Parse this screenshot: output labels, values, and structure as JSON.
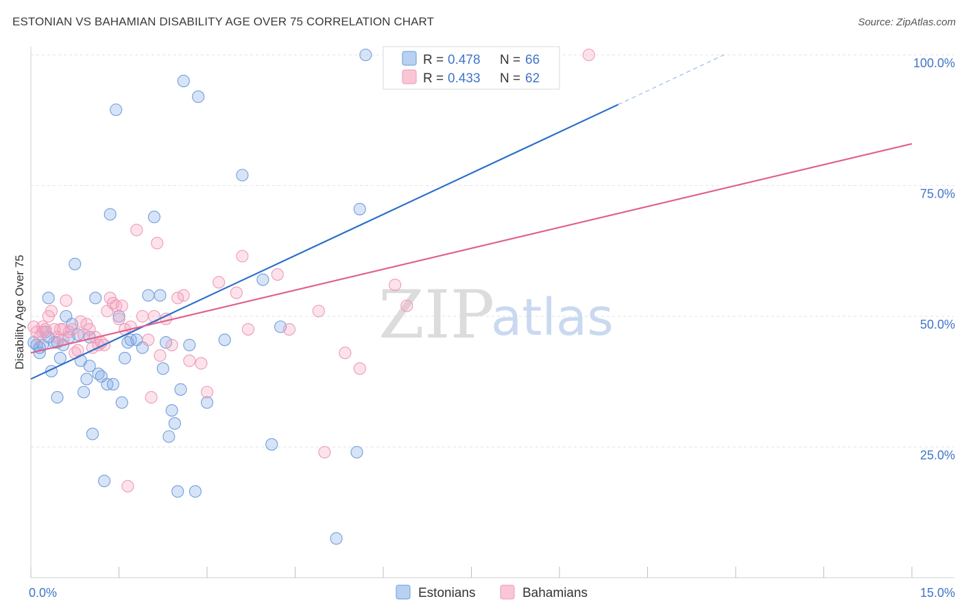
{
  "title": "ESTONIAN VS BAHAMIAN DISABILITY AGE OVER 75 CORRELATION CHART",
  "source": "Source: ZipAtlas.com",
  "watermark": {
    "zip": "ZIP",
    "atlas": "atlas"
  },
  "chart_data": {
    "type": "scatter",
    "xlabel": "",
    "ylabel": "Disability Age Over 75",
    "xlim": [
      0,
      15
    ],
    "ylim": [
      0,
      100
    ],
    "x_tick_labels": [
      "0.0%",
      "15.0%"
    ],
    "y_ticks": [
      25,
      50,
      75,
      100
    ],
    "y_tick_labels": [
      "25.0%",
      "50.0%",
      "75.0%",
      "100.0%"
    ],
    "grid": true,
    "legend_position": "top-center",
    "colors": {
      "estonians": "#7aa6e0",
      "bahamians": "#f2a3bd",
      "estonians_line": "#2a6fc9",
      "bahamians_line": "#e0608d"
    },
    "stats": [
      {
        "r_label": "R = ",
        "r": "0.478",
        "n_label": "N = ",
        "n": "66"
      },
      {
        "r_label": "R = ",
        "r": "0.433",
        "n_label": "N = ",
        "n": "62"
      }
    ],
    "series": [
      {
        "name": "Estonians",
        "trend": {
          "x0": 0,
          "y0": 38,
          "x1": 10,
          "y1": 90.5,
          "dash_x1": 11.8,
          "dash_y1": 100
        },
        "points": [
          [
            0.05,
            45
          ],
          [
            0.1,
            44.5
          ],
          [
            0.15,
            43
          ],
          [
            0.2,
            44.5
          ],
          [
            0.25,
            47
          ],
          [
            0.3,
            53.5
          ],
          [
            0.35,
            39.5
          ],
          [
            0.4,
            45
          ],
          [
            0.45,
            34.5
          ],
          [
            0.5,
            42
          ],
          [
            0.55,
            44.5
          ],
          [
            0.6,
            50
          ],
          [
            0.65,
            46
          ],
          [
            0.7,
            48.5
          ],
          [
            0.75,
            60
          ],
          [
            0.8,
            46.5
          ],
          [
            0.85,
            41.5
          ],
          [
            0.9,
            35.5
          ],
          [
            0.95,
            38
          ],
          [
            1.0,
            40.5
          ],
          [
            1.05,
            27.5
          ],
          [
            1.1,
            53.5
          ],
          [
            1.15,
            39
          ],
          [
            1.2,
            38.5
          ],
          [
            1.25,
            18.5
          ],
          [
            1.3,
            37
          ],
          [
            1.35,
            69.5
          ],
          [
            1.4,
            37
          ],
          [
            1.45,
            89.5
          ],
          [
            1.5,
            50
          ],
          [
            1.55,
            33.5
          ],
          [
            1.6,
            42
          ],
          [
            1.7,
            45.5
          ],
          [
            1.8,
            45.5
          ],
          [
            1.9,
            44
          ],
          [
            2.0,
            54
          ],
          [
            2.1,
            69
          ],
          [
            2.2,
            54
          ],
          [
            2.25,
            40
          ],
          [
            2.3,
            45
          ],
          [
            2.35,
            27
          ],
          [
            2.4,
            32
          ],
          [
            2.45,
            29.5
          ],
          [
            2.5,
            16.5
          ],
          [
            2.55,
            36
          ],
          [
            2.6,
            95
          ],
          [
            2.8,
            16.5
          ],
          [
            2.85,
            92
          ],
          [
            3.0,
            33.5
          ],
          [
            3.3,
            45.5
          ],
          [
            3.6,
            77
          ],
          [
            3.95,
            57
          ],
          [
            4.1,
            25.5
          ],
          [
            4.25,
            48
          ],
          [
            5.2,
            7.5
          ],
          [
            5.55,
            24
          ],
          [
            5.6,
            70.5
          ],
          [
            5.7,
            100
          ],
          [
            6.4,
            100
          ],
          [
            7.8,
            100
          ],
          [
            1.0,
            46
          ],
          [
            0.3,
            46
          ],
          [
            0.45,
            45
          ],
          [
            1.65,
            45
          ],
          [
            2.7,
            44.5
          ],
          [
            0.15,
            44
          ]
        ]
      },
      {
        "name": "Bahamians",
        "trend": {
          "x0": 0,
          "y0": 43,
          "x1": 15,
          "y1": 83
        },
        "points": [
          [
            0.05,
            48
          ],
          [
            0.1,
            47
          ],
          [
            0.15,
            46
          ],
          [
            0.2,
            48
          ],
          [
            0.25,
            47.5
          ],
          [
            0.3,
            50
          ],
          [
            0.35,
            51
          ],
          [
            0.4,
            47.5
          ],
          [
            0.45,
            46
          ],
          [
            0.5,
            47.5
          ],
          [
            0.55,
            45.5
          ],
          [
            0.6,
            53
          ],
          [
            0.65,
            47
          ],
          [
            0.7,
            47.5
          ],
          [
            0.75,
            43
          ],
          [
            0.8,
            43.5
          ],
          [
            0.85,
            49
          ],
          [
            0.9,
            46.5
          ],
          [
            0.95,
            48.5
          ],
          [
            1.0,
            47.5
          ],
          [
            1.05,
            44
          ],
          [
            1.1,
            46
          ],
          [
            1.15,
            44.5
          ],
          [
            1.2,
            45
          ],
          [
            1.25,
            44.5
          ],
          [
            1.3,
            51
          ],
          [
            1.35,
            53.5
          ],
          [
            1.4,
            52.5
          ],
          [
            1.45,
            52
          ],
          [
            1.5,
            49.5
          ],
          [
            1.55,
            52
          ],
          [
            1.6,
            47.5
          ],
          [
            1.65,
            17.5
          ],
          [
            1.7,
            48
          ],
          [
            1.8,
            66.5
          ],
          [
            1.9,
            50
          ],
          [
            2.0,
            45.5
          ],
          [
            2.05,
            34.5
          ],
          [
            2.1,
            50
          ],
          [
            2.15,
            64
          ],
          [
            2.2,
            42.5
          ],
          [
            2.3,
            49.5
          ],
          [
            2.4,
            44.5
          ],
          [
            2.5,
            53.5
          ],
          [
            2.6,
            54
          ],
          [
            2.7,
            41.5
          ],
          [
            2.9,
            41
          ],
          [
            3.0,
            35.5
          ],
          [
            3.2,
            56.5
          ],
          [
            3.5,
            54.5
          ],
          [
            3.6,
            61.5
          ],
          [
            3.7,
            47.5
          ],
          [
            4.2,
            58
          ],
          [
            4.4,
            47.5
          ],
          [
            4.9,
            51
          ],
          [
            5.0,
            24
          ],
          [
            5.35,
            43
          ],
          [
            5.6,
            40
          ],
          [
            6.2,
            56
          ],
          [
            6.4,
            52
          ],
          [
            0.55,
            47.5
          ],
          [
            0.2,
            47
          ]
        ]
      }
    ],
    "special_points": [
      {
        "series": "Bahamians",
        "x": 9.5,
        "y": 100
      },
      {
        "series": "Estonians",
        "x": 6.9,
        "y": 100
      }
    ]
  },
  "bottom_legend": [
    "Estonians",
    "Bahamians"
  ]
}
